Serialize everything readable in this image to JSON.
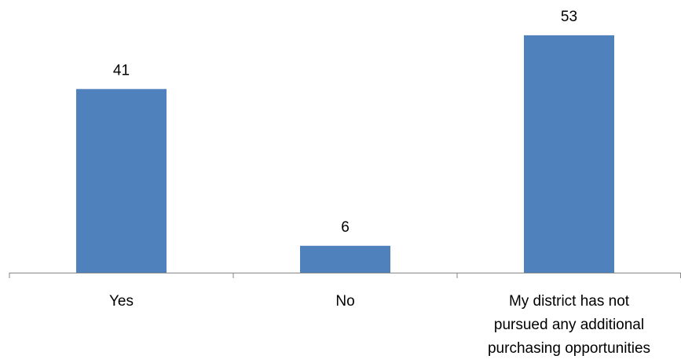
{
  "chart_data": {
    "type": "bar",
    "categories": [
      [
        "Yes"
      ],
      [
        "No"
      ],
      [
        "My district has not",
        "pursued any additional",
        "purchasing opportunities"
      ]
    ],
    "values": [
      41,
      6,
      53
    ],
    "ylim": [
      0,
      60
    ],
    "grid": false,
    "legend": "none",
    "colors": {
      "bar": "#4F81BD",
      "axis": "#868686",
      "text": "#000000"
    }
  }
}
